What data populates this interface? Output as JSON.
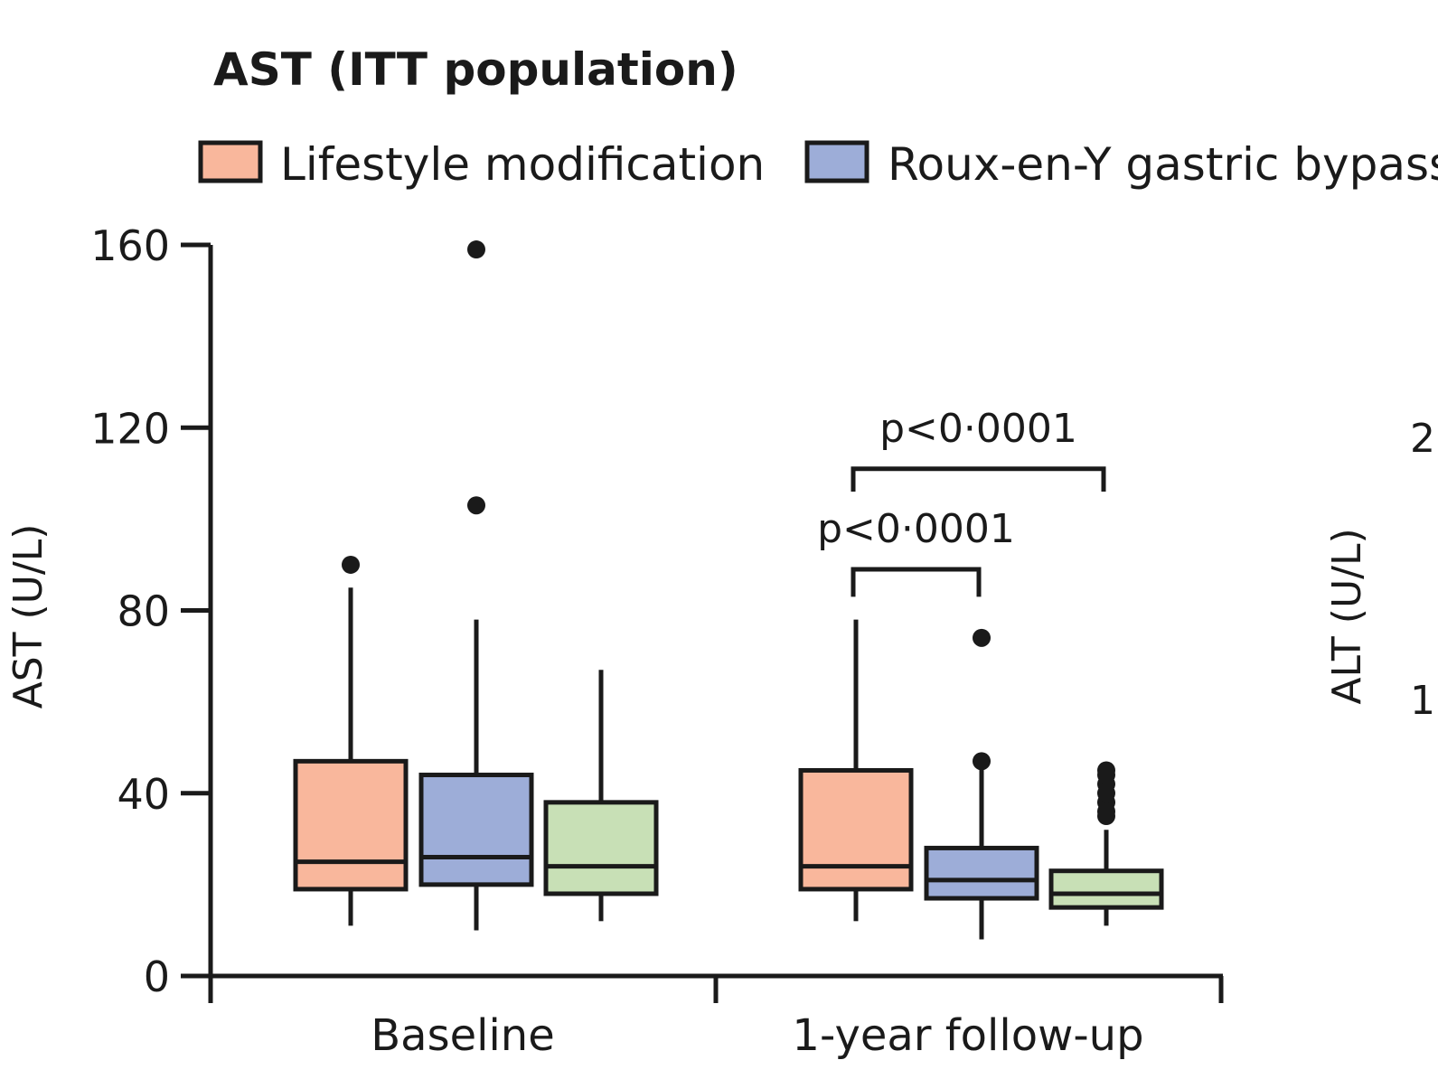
{
  "chart_data": {
    "type": "box",
    "title": "AST (ITT population)",
    "ylabel": "AST (U/L)",
    "xlabel": "",
    "ylim": [
      0,
      160
    ],
    "yticks": [
      0,
      40,
      80,
      120,
      160
    ],
    "categories": [
      "Baseline",
      "1-year follow-up"
    ],
    "series": [
      {
        "name": "Lifestyle modification",
        "color": "#f9b79c",
        "boxes": [
          {
            "category": "Baseline",
            "whisker_low": 11,
            "q1": 19,
            "median": 25,
            "q3": 47,
            "whisker_high": 85,
            "outliers": [
              90
            ]
          },
          {
            "category": "1-year follow-up",
            "whisker_low": 12,
            "q1": 19,
            "median": 24,
            "q3": 45,
            "whisker_high": 78,
            "outliers": []
          }
        ]
      },
      {
        "name": "Roux-en-Y gastric bypass",
        "color": "#9dadd8",
        "boxes": [
          {
            "category": "Baseline",
            "whisker_low": 10,
            "q1": 20,
            "median": 26,
            "q3": 44,
            "whisker_high": 78,
            "outliers": [
              103,
              159
            ]
          },
          {
            "category": "1-year follow-up",
            "whisker_low": 8,
            "q1": 17,
            "median": 21,
            "q3": 28,
            "whisker_high": 46,
            "outliers": [
              47,
              74
            ]
          }
        ]
      },
      {
        "name": "",
        "color": "#c8e0b6",
        "boxes": [
          {
            "category": "Baseline",
            "whisker_low": 12,
            "q1": 18,
            "median": 24,
            "q3": 38,
            "whisker_high": 67,
            "outliers": []
          },
          {
            "category": "1-year follow-up",
            "whisker_low": 11,
            "q1": 15,
            "median": 18,
            "q3": 23,
            "whisker_high": 32,
            "outliers": [
              35,
              36,
              38,
              40,
              42,
              44,
              45
            ]
          }
        ]
      }
    ],
    "annotations": [
      {
        "text": "p<0·0001",
        "category": "1-year follow-up",
        "from_series": 0,
        "to_series": 2,
        "level": 111,
        "drop": 106
      },
      {
        "text": "p<0·0001",
        "category": "1-year follow-up",
        "from_series": 0,
        "to_series": 1,
        "level": 89,
        "drop": 83
      }
    ],
    "partial_panel": {
      "ylabel": "ALT (U/L)",
      "tick_fragments": [
        "2",
        "1"
      ]
    }
  }
}
